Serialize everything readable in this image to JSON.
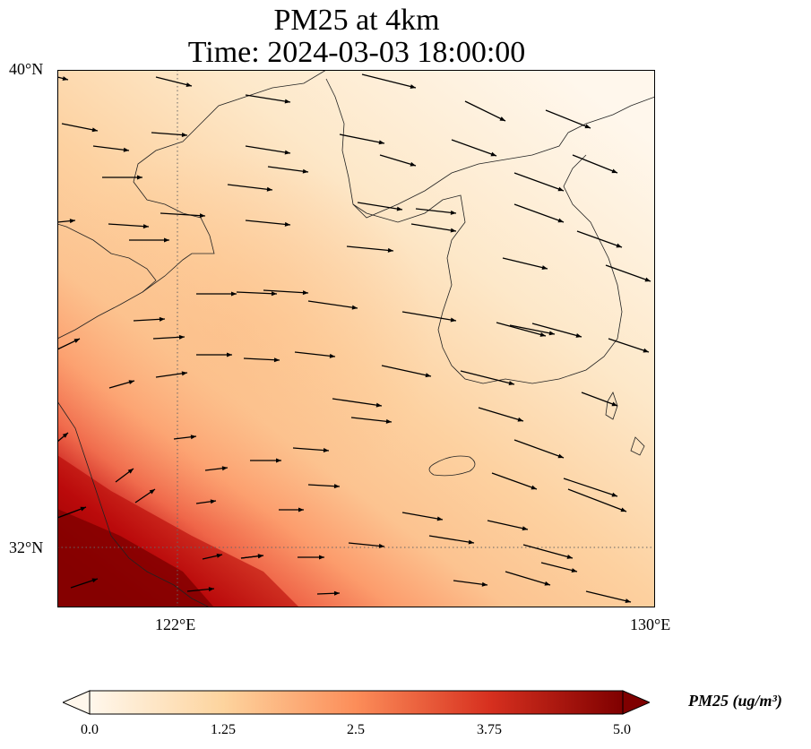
{
  "title": {
    "line1": "PM25 at 4km",
    "line2": "Time: 2024-03-03 18:00:00"
  },
  "map": {
    "lat_labels": [
      "40°N",
      "32°N"
    ],
    "lon_labels": [
      "122°E",
      "130°E"
    ],
    "extent": {
      "lon_min": 120.0,
      "lon_max": 130.0,
      "lat_min": 31.0,
      "lat_max": 40.0
    },
    "gridlines": {
      "lons": [
        122
      ],
      "lats": [
        32
      ],
      "style": "dotted"
    },
    "field_variable": "PM25",
    "colormap": "OrRd",
    "colors": {
      "low": "#fff7ec",
      "mid": "#fdbb84",
      "high": "#7f0000"
    }
  },
  "colorbar": {
    "label": "PM25 (ug/m³)",
    "ticks": [
      "0.0",
      "1.25",
      "2.5",
      "3.75",
      "5.0"
    ],
    "min": 0.0,
    "max": 5.0,
    "extend": "both"
  }
}
